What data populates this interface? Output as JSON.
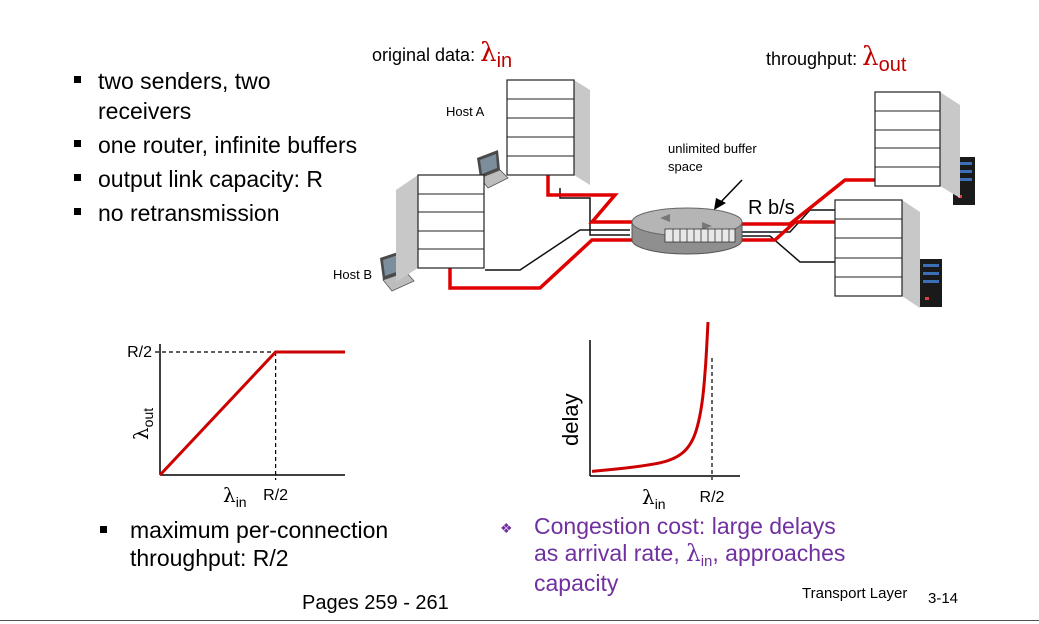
{
  "bullets": [
    "two senders, two receivers",
    "one router, infinite buffers",
    "output link capacity: R",
    "no retransmission"
  ],
  "labels": {
    "original_data": "original data:",
    "lambda_symbol": "λ",
    "in_sub": "in",
    "throughput": "throughput:",
    "out_sub": "out",
    "host_a": "Host A",
    "host_b": "Host B",
    "buffer_line1": "unlimited buffer",
    "buffer_line2": "space",
    "link_rate": "R b/s"
  },
  "chart_data": [
    {
      "type": "line",
      "xlabel_symbol": "λ",
      "xlabel_sub": "in",
      "ylabel_symbol": "λ",
      "ylabel_sub": "out",
      "x_tick": "R/2",
      "y_tick": "R/2",
      "series": [
        {
          "points": [
            [
              0,
              0
            ],
            [
              0.5,
              0.5
            ],
            [
              0.8,
              0.5
            ]
          ]
        }
      ],
      "color": "#cc0000"
    },
    {
      "type": "line",
      "xlabel_symbol": "λ",
      "xlabel_sub": "in",
      "ylabel": "delay",
      "x_tick": "R/2",
      "series": [
        {
          "points": [
            [
              0,
              0.03
            ],
            [
              0.2,
              0.06
            ],
            [
              0.35,
              0.1
            ],
            [
              0.43,
              0.2
            ],
            [
              0.47,
              0.4
            ],
            [
              0.49,
              0.7
            ],
            [
              0.5,
              1.0
            ]
          ]
        }
      ],
      "color": "#cc0000"
    }
  ],
  "bottom": {
    "throughput_line1": "maximum per-connection",
    "throughput_line2": "throughput: R/2",
    "cost_line1": "Congestion cost: large delays",
    "cost_line2_pre": "as arrival rate,",
    "cost_line2_lam": "λ",
    "cost_line2_sub": "in",
    "cost_line2_post": ", approaches",
    "cost_line3": "capacity"
  },
  "footer": {
    "pages": "Pages 259 - 261",
    "layer": "Transport Layer",
    "slide_no": "3-14"
  }
}
